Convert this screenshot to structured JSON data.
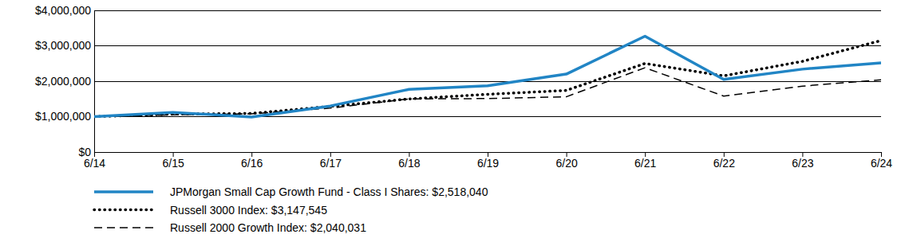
{
  "chart_data": {
    "type": "line",
    "categories": [
      "6/14",
      "6/15",
      "6/16",
      "6/17",
      "6/18",
      "6/19",
      "6/20",
      "6/21",
      "6/22",
      "6/23",
      "6/24"
    ],
    "series": [
      {
        "name": "JPMorgan Small Cap Growth Fund - Class I Shares: $2,518,040",
        "color": "#2185c5",
        "line_style": "solid",
        "values": [
          1000000,
          1120000,
          990000,
          1300000,
          1770000,
          1870000,
          2200000,
          3270000,
          2050000,
          2340000,
          2518040
        ]
      },
      {
        "name": "Russell 3000 Index: $3,147,545",
        "color": "#000000",
        "line_style": "dotted",
        "values": [
          1000000,
          1070000,
          1090000,
          1290000,
          1500000,
          1630000,
          1740000,
          2500000,
          2150000,
          2560000,
          3147545
        ]
      },
      {
        "name": "Russell 2000 Growth Index: $2,040,031",
        "color": "#000000",
        "line_style": "dashed",
        "values": [
          1000000,
          1050000,
          1080000,
          1240000,
          1500000,
          1510000,
          1560000,
          2380000,
          1580000,
          1860000,
          2040031
        ]
      }
    ],
    "ylim": [
      0,
      4000000
    ],
    "yticks": [
      {
        "value": 0,
        "label": "$0"
      },
      {
        "value": 1000000,
        "label": "$1,000,000"
      },
      {
        "value": 2000000,
        "label": "$2,000,000"
      },
      {
        "value": 3000000,
        "label": "$3,000,000"
      },
      {
        "value": 4000000,
        "label": "$4,000,000"
      }
    ],
    "grid": true,
    "legend": "bottom"
  }
}
